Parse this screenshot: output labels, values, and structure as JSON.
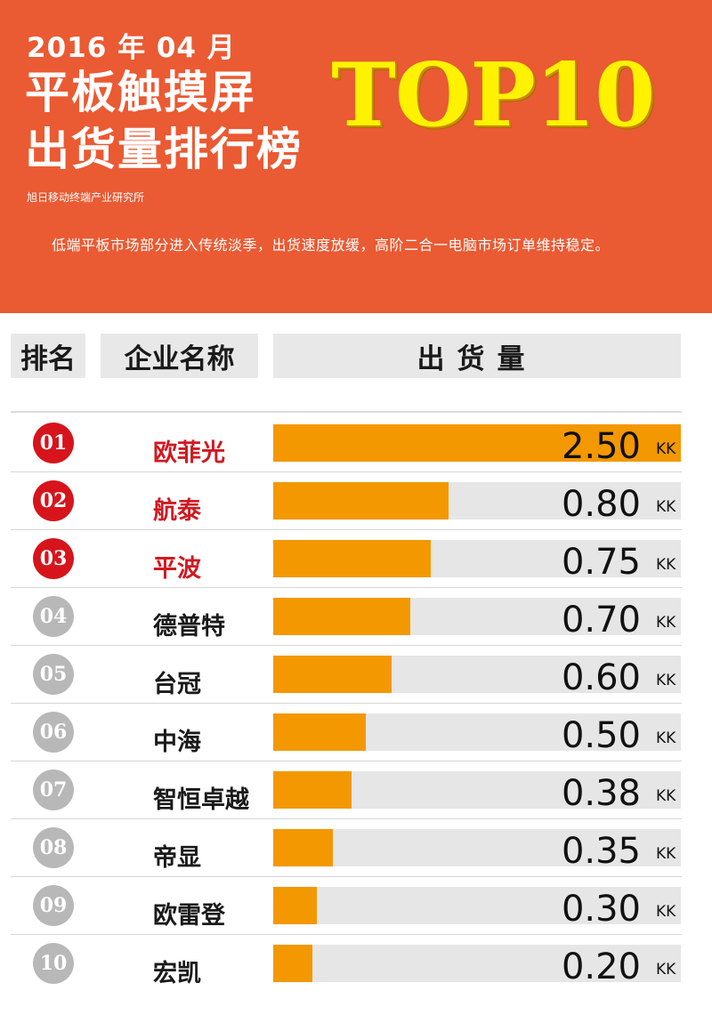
{
  "header": {
    "date": "2016 年 04 月",
    "title_line1": "平板触摸屏",
    "title_line2": "出货量排行榜",
    "badge": "TOP10",
    "source": "旭日移动终端产业研究所",
    "subtitle": "低端平板市场部分进入传统淡季，出货速度放缓，高阶二合一电脑市场订单维持稳定。"
  },
  "columns": {
    "rank": "排名",
    "company": "企业名称",
    "shipment": "出货量"
  },
  "colors": {
    "header_bg": "#ea5a33",
    "bar": "#f39800",
    "track": "#e6e6e6",
    "top_rank": "#d7141c",
    "other_rank": "#b8b8b8",
    "title_yellow": "#fff200"
  },
  "chart_data": {
    "type": "bar",
    "orientation": "horizontal",
    "unit": "KK",
    "xlim": [
      0,
      2.5
    ],
    "ranks": [
      "01",
      "02",
      "03",
      "04",
      "05",
      "06",
      "07",
      "08",
      "09",
      "10"
    ],
    "categories": [
      "欧菲光",
      "航泰",
      "平波",
      "德普特",
      "台冠",
      "中海",
      "智恒卓越",
      "帝显",
      "欧雷登",
      "宏凯"
    ],
    "values": [
      2.5,
      0.8,
      0.75,
      0.7,
      0.6,
      0.5,
      0.38,
      0.35,
      0.3,
      0.2
    ],
    "labels": [
      "2.50",
      "0.80",
      "0.75",
      "0.70",
      "0.60",
      "0.50",
      "0.38",
      "0.35",
      "0.30",
      "0.20"
    ],
    "bar_fill_fraction": [
      1.0,
      0.43,
      0.387,
      0.337,
      0.29,
      0.227,
      0.193,
      0.146,
      0.107,
      0.096
    ]
  }
}
